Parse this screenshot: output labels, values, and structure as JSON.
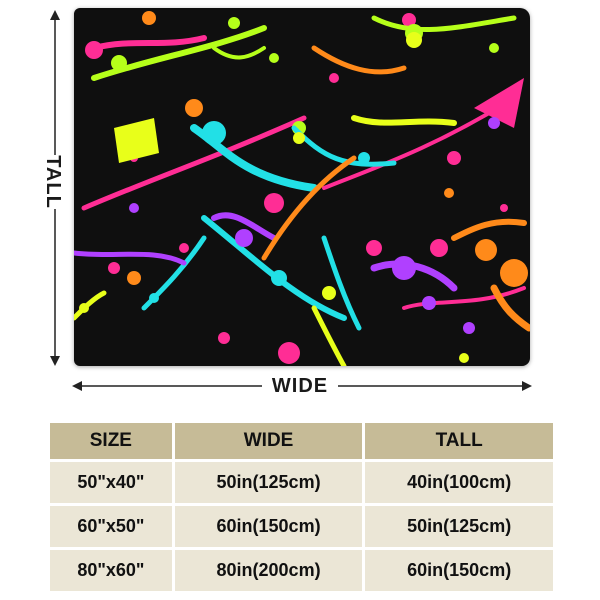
{
  "dimension_labels": {
    "tall": "TALL",
    "wide": "WIDE"
  },
  "size_table": {
    "headers": [
      "SIZE",
      "WIDE",
      "TALL"
    ],
    "rows": [
      [
        "50\"x40\"",
        "50in(125cm)",
        "40in(100cm)"
      ],
      [
        "60\"x50\"",
        "60in(150cm)",
        "50in(125cm)"
      ],
      [
        "80\"x60\"",
        "80in(200cm)",
        "60in(150cm)"
      ]
    ]
  },
  "colors": {
    "blanket_background": "#0f0f0f",
    "splatter": [
      "#ff2d95",
      "#b6ff1a",
      "#22e0e6",
      "#b040ff",
      "#ff8a1a",
      "#e8ff1a"
    ],
    "table_header": "#c6bb97",
    "table_cell": "#ebe6d6"
  }
}
